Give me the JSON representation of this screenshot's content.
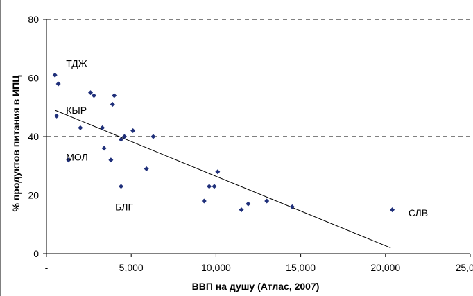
{
  "chart_data": {
    "type": "scatter",
    "title": "",
    "xlabel": "ВВП на душу (Атлас, 2007)",
    "ylabel": "% продуктов питания в ИПЦ",
    "xlim": [
      0,
      25000
    ],
    "ylim": [
      0,
      80
    ],
    "x_ticks": [
      0,
      5000,
      10000,
      15000,
      20000,
      25000
    ],
    "x_tick_labels": [
      "-",
      "5,000",
      "10,000",
      "15,000",
      "20,000",
      "25,000"
    ],
    "y_ticks": [
      0,
      20,
      40,
      60,
      80
    ],
    "y_tick_labels": [
      "0",
      "20",
      "40",
      "60",
      "80"
    ],
    "grid": "horizontal-dashed",
    "marker_color": "#1f2f7a",
    "points": [
      {
        "x": 500,
        "y": 61
      },
      {
        "x": 700,
        "y": 58
      },
      {
        "x": 600,
        "y": 47
      },
      {
        "x": 1300,
        "y": 32
      },
      {
        "x": 2000,
        "y": 43
      },
      {
        "x": 2600,
        "y": 55
      },
      {
        "x": 2800,
        "y": 54
      },
      {
        "x": 3300,
        "y": 43
      },
      {
        "x": 3400,
        "y": 36
      },
      {
        "x": 3800,
        "y": 32
      },
      {
        "x": 3900,
        "y": 51
      },
      {
        "x": 4000,
        "y": 54
      },
      {
        "x": 4400,
        "y": 39
      },
      {
        "x": 4400,
        "y": 23
      },
      {
        "x": 4600,
        "y": 40
      },
      {
        "x": 5100,
        "y": 42
      },
      {
        "x": 5900,
        "y": 29
      },
      {
        "x": 6300,
        "y": 40
      },
      {
        "x": 9300,
        "y": 18
      },
      {
        "x": 9600,
        "y": 23
      },
      {
        "x": 9900,
        "y": 23
      },
      {
        "x": 10100,
        "y": 28
      },
      {
        "x": 11500,
        "y": 15
      },
      {
        "x": 11900,
        "y": 17
      },
      {
        "x": 13000,
        "y": 18
      },
      {
        "x": 14500,
        "y": 16
      },
      {
        "x": 20400,
        "y": 15
      }
    ],
    "trendline": {
      "x": [
        500,
        20300
      ],
      "y": [
        49,
        2
      ]
    },
    "annotations": [
      {
        "text": "ТДЖ",
        "x": 500,
        "y": 65
      },
      {
        "text": "КЫР",
        "x": 500,
        "y": 49
      },
      {
        "text": "МОЛ",
        "x": 500,
        "y": 33
      },
      {
        "text": "БЛГ",
        "x": 3400,
        "y": 16
      },
      {
        "text": "СЛВ",
        "x": 20700,
        "y": 14
      }
    ]
  }
}
